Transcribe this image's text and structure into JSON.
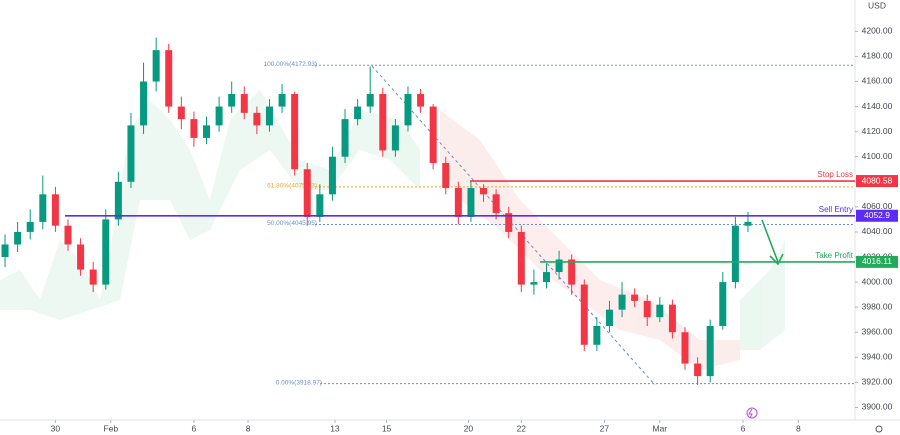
{
  "chart_data": {
    "type": "candlestick",
    "currency": "USD",
    "xlim": [
      -0.4,
      67.5
    ],
    "xticks": [
      {
        "value": 4,
        "label": "30"
      },
      {
        "value": 8.4,
        "label": "Feb"
      },
      {
        "value": 15,
        "label": "6"
      },
      {
        "value": 19.3,
        "label": "8"
      },
      {
        "value": 26.2,
        "label": "13"
      },
      {
        "value": 30.3,
        "label": "15"
      },
      {
        "value": 36.8,
        "label": "20"
      },
      {
        "value": 41,
        "label": "22"
      },
      {
        "value": 47.6,
        "label": "27"
      },
      {
        "value": 52,
        "label": "Mar"
      },
      {
        "value": 58.6,
        "label": "6"
      },
      {
        "value": 63,
        "label": "8"
      }
    ],
    "ylim": [
      3890,
      4225
    ],
    "yticks": [
      {
        "value": 3900,
        "label": "3900.00"
      },
      {
        "value": 3920,
        "label": "3920.00"
      },
      {
        "value": 3940,
        "label": "3940.00"
      },
      {
        "value": 3960,
        "label": "3960.00"
      },
      {
        "value": 3980,
        "label": "3980.00"
      },
      {
        "value": 4000,
        "label": "4000.00"
      },
      {
        "value": 4020,
        "label": "4020.00"
      },
      {
        "value": 4040,
        "label": "4040.00"
      },
      {
        "value": 4060,
        "label": "4060.00"
      },
      {
        "value": 4080,
        "label": "4080.00"
      },
      {
        "value": 4100,
        "label": "4100.00"
      },
      {
        "value": 4120,
        "label": "4120.00"
      },
      {
        "value": 4140,
        "label": "4140.00"
      },
      {
        "value": 4160,
        "label": "4160.00"
      },
      {
        "value": 4180,
        "label": "4180.00"
      },
      {
        "value": 4200,
        "label": "4200.00"
      }
    ],
    "up_color": "#089981",
    "down_color": "#f23645",
    "open": [
      4020,
      4030,
      4040,
      4048,
      4070,
      4045,
      4030,
      4010,
      3998,
      4050,
      4080,
      4125,
      4160,
      4185,
      4140,
      4130,
      4115,
      4125,
      4140,
      4150,
      4135,
      4125,
      4140,
      4150,
      4090,
      4052,
      4070,
      4100,
      4130,
      4140,
      4150,
      4105,
      4125,
      4150,
      4140,
      4095,
      4075,
      4052,
      4075,
      4070,
      4055,
      4040,
      3998,
      4000,
      4008,
      4018,
      3998,
      3950,
      3965,
      3978,
      3990,
      3985,
      3972,
      3982,
      3960,
      3935,
      3925,
      3965,
      4000,
      4045
    ],
    "high": [
      4038,
      4048,
      4058,
      4085,
      4076,
      4050,
      4035,
      4016,
      4058,
      4088,
      4135,
      4175,
      4195,
      4190,
      4148,
      4136,
      4132,
      4148,
      4160,
      4156,
      4140,
      4146,
      4158,
      4152,
      4095,
      4078,
      4108,
      4138,
      4146,
      4172,
      4155,
      4130,
      4156,
      4154,
      4142,
      4100,
      4080,
      4080,
      4078,
      4074,
      4060,
      4045,
      4010,
      4015,
      4025,
      4022,
      4002,
      3972,
      3985,
      4000,
      3995,
      3990,
      3988,
      3986,
      3964,
      3940,
      3970,
      4008,
      4052,
      4056
    ],
    "low": [
      4012,
      4024,
      4034,
      4042,
      4040,
      4025,
      4005,
      3992,
      3994,
      4045,
      4075,
      4118,
      4152,
      4135,
      4122,
      4108,
      4110,
      4120,
      4135,
      4130,
      4118,
      4120,
      4135,
      4085,
      4045,
      4048,
      4065,
      4095,
      4125,
      4135,
      4100,
      4100,
      4120,
      4135,
      4090,
      4070,
      4046,
      4048,
      4064,
      4050,
      4035,
      3992,
      3990,
      3995,
      4002,
      3990,
      3945,
      3945,
      3960,
      3972,
      3980,
      3965,
      3968,
      3955,
      3930,
      3918,
      3920,
      3962,
      3995,
      4040
    ],
    "close": [
      4030,
      4040,
      4048,
      4070,
      4045,
      4030,
      4010,
      3998,
      4050,
      4080,
      4125,
      4160,
      4185,
      4140,
      4130,
      4115,
      4125,
      4140,
      4150,
      4135,
      4125,
      4140,
      4150,
      4090,
      4052,
      4070,
      4100,
      4130,
      4140,
      4150,
      4105,
      4125,
      4150,
      4140,
      4095,
      4075,
      4052,
      4075,
      4070,
      4055,
      4040,
      3998,
      4000,
      4008,
      4018,
      3998,
      3950,
      3965,
      3978,
      3990,
      3985,
      3972,
      3982,
      3960,
      3935,
      3925,
      3965,
      4000,
      4045,
      4048
    ],
    "levels": [
      {
        "name": "Stop Loss",
        "value": 4080.58,
        "color": "#f23645"
      },
      {
        "name": "Sell Entry",
        "value": 4052.9,
        "color": "#5b2cf5"
      },
      {
        "name": "Take Profit",
        "value": 4016.11,
        "color": "#22ab5a"
      }
    ],
    "fib_levels": [
      {
        "value": 4172.93,
        "label": "100.00%(4172.93)",
        "color": "#6a8fc8"
      },
      {
        "value": 4075.93,
        "label": "61.80%(4075.93)",
        "color": "#f5a623"
      },
      {
        "value": 4045.95,
        "label": "50.00%(4045.95)",
        "color": "#6a8fc8"
      },
      {
        "value": 3918.97,
        "label": "0.00%(3918.97)",
        "color": "#6a8fc8"
      }
    ]
  }
}
